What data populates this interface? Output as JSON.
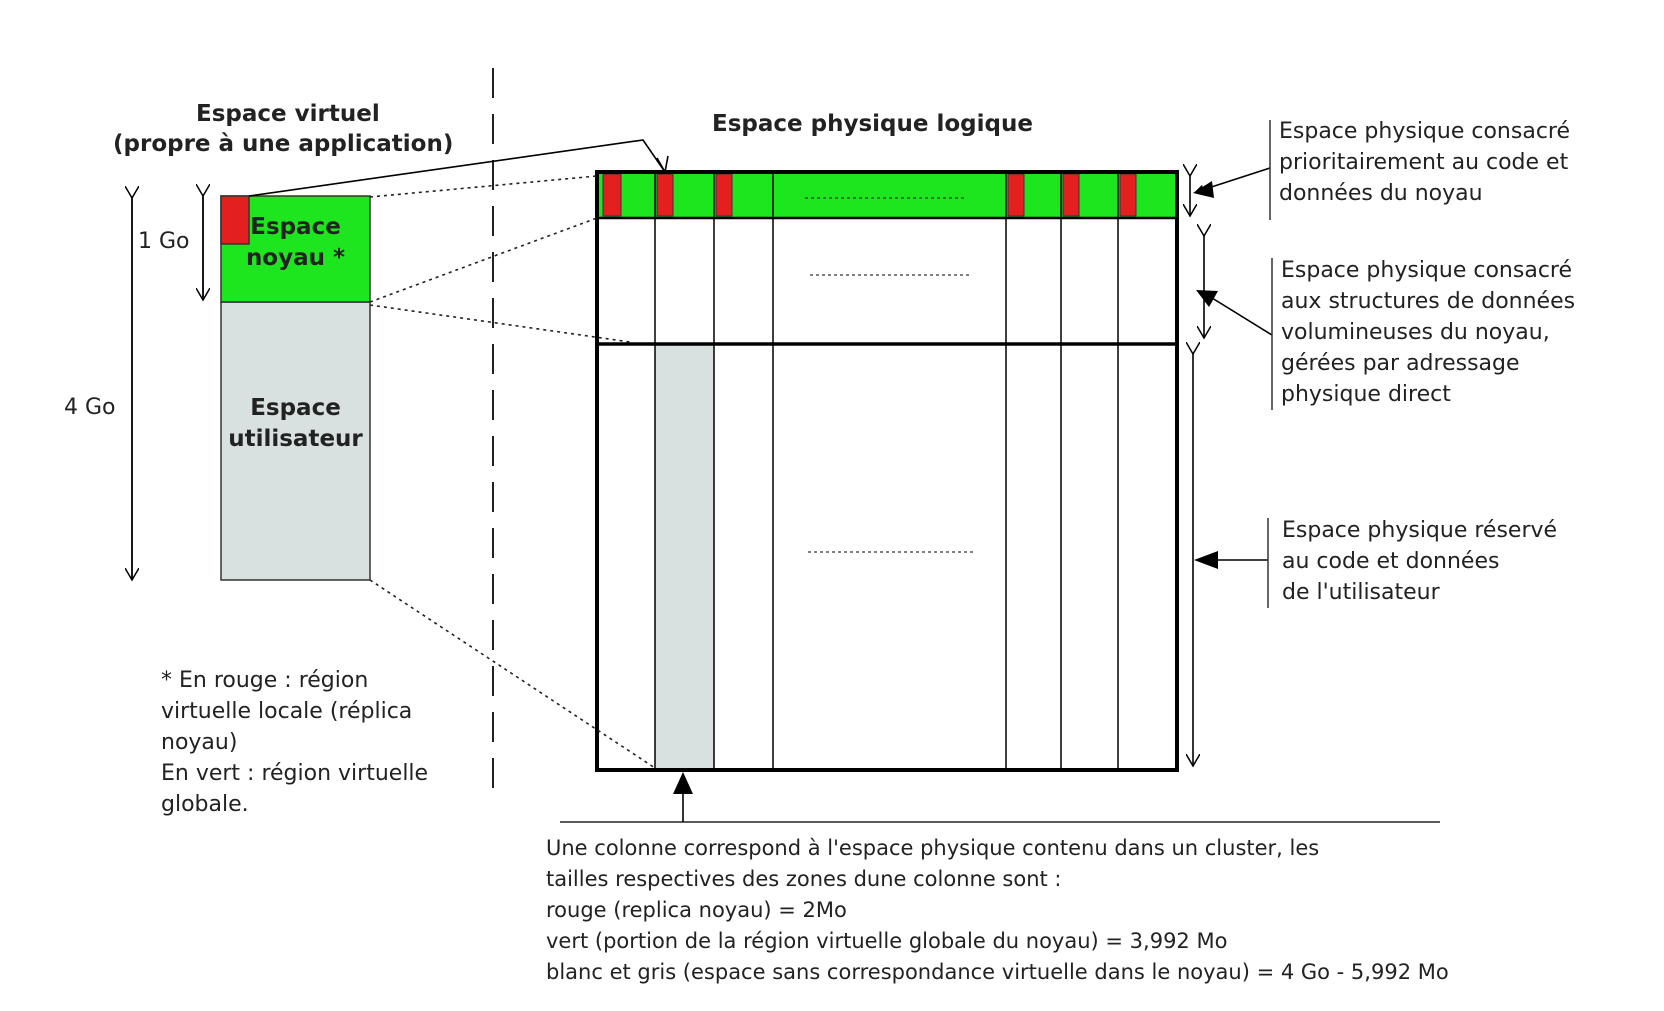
{
  "virtual_space": {
    "title_line1": "Espace virtuel",
    "title_line2": "(propre à une application)",
    "size_total": "4 Go",
    "size_kernel": "1 Go",
    "kernel_label_line1": "Espace",
    "kernel_label_line2": "noyau *",
    "user_label_line1": "Espace",
    "user_label_line2": "utilisateur"
  },
  "legend_note": {
    "line1": "* En rouge : région",
    "line2": "virtuelle locale (réplica",
    "line3": "noyau)",
    "line4": "En vert : région virtuelle",
    "line5": "globale."
  },
  "physical_space": {
    "title": "Espace physique logique",
    "ellipsis_top": "…",
    "ellipsis_middle": "…",
    "ellipsis_bottom": "…"
  },
  "annotations": {
    "kernel_code": [
      "Espace physique consacré",
      "prioritairement au code et",
      "données du noyau"
    ],
    "kernel_structures": [
      "Espace physique consacré",
      "aux structures de données",
      "volumineuses du noyau,",
      "gérées par adressage",
      "physique direct"
    ],
    "user_space": [
      "Espace physique réservé",
      "au code et données",
      "de l'utilisateur"
    ]
  },
  "footnote": {
    "line1": "Une colonne correspond à l'espace physique contenu dans un cluster, les",
    "line2": "tailles respectives des zones dune colonne sont :",
    "line3": "rouge (replica noyau) = 2Mo",
    "line4": "vert (portion de la région virtuelle globale du noyau) = 3,992 Mo",
    "line5": "blanc et gris (espace sans correspondance virtuelle dans le noyau) =  4 Go - 5,992 Mo"
  },
  "colors": {
    "red": "#e41f1f",
    "green": "#1ee61e",
    "gray": "#d8e0e0",
    "line": "#000000"
  }
}
